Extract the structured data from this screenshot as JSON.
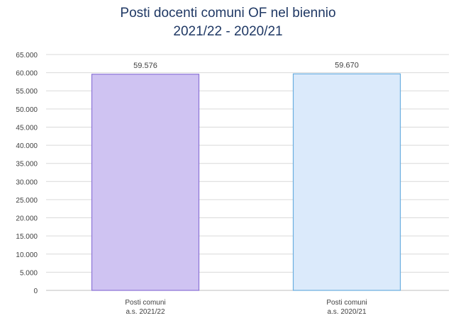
{
  "chart_data": {
    "type": "bar",
    "title_lines": [
      "Posti docenti comuni OF nel biennio",
      "2021/22 - 2020/21"
    ],
    "categories": [
      [
        "Posti comuni",
        "a.s. 2021/22"
      ],
      [
        "Posti comuni",
        "a.s. 2020/21"
      ]
    ],
    "values": [
      59576,
      59670
    ],
    "value_labels": [
      "59.576",
      "59.670"
    ],
    "ylim": [
      0,
      65000
    ],
    "y_ticks": [
      0,
      5000,
      10000,
      15000,
      20000,
      25000,
      30000,
      35000,
      40000,
      45000,
      50000,
      55000,
      60000,
      65000
    ],
    "y_tick_labels": [
      "0",
      "5.000",
      "10.000",
      "15.000",
      "20.000",
      "25.000",
      "30.000",
      "35.000",
      "40.000",
      "45.000",
      "50.000",
      "55.000",
      "60.000",
      "65.000"
    ],
    "grid": true,
    "legend": false,
    "colors": {
      "bar_fills": [
        "#cfc3f2",
        "#dbeafb"
      ],
      "bar_strokes": [
        "#8a72d6",
        "#6aaee0"
      ],
      "grid": "#d9d9d9",
      "title": "#1f3864",
      "text": "#404040"
    }
  }
}
